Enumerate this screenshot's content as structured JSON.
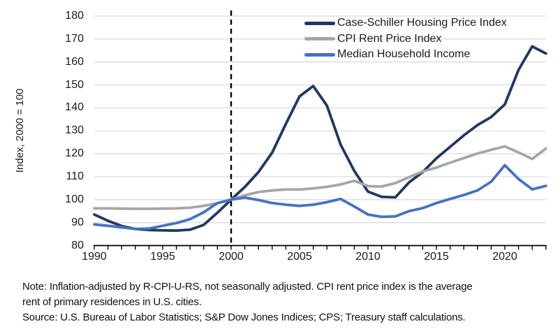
{
  "y_axis": {
    "title": "Index, 2000 = 100",
    "min": 80,
    "max": 180,
    "tick_step": 10
  },
  "x_axis": {
    "min": 1990,
    "max": 2023,
    "labeled_ticks": [
      1990,
      1995,
      2000,
      2005,
      2010,
      2015,
      2020
    ],
    "minor_tick_every": 1
  },
  "reference_line": {
    "x": 2000,
    "style": "dashed",
    "color": "#000000"
  },
  "colors": {
    "gridline": "#d9d9d9",
    "axis": "#000000",
    "text": "#262626"
  },
  "legend": [
    {
      "id": "case_shiller",
      "label": "Case-Schiller Housing Price Index",
      "color": "#1f3864"
    },
    {
      "id": "cpi_rent",
      "label": "CPI Rent Price Index",
      "color": "#a6a6a6"
    },
    {
      "id": "median_income",
      "label": "Median Household Income",
      "color": "#4472c4"
    }
  ],
  "notes": {
    "line1": "Note: Inflation-adjusted by R-CPI-U-RS, not seasonally adjusted. CPI rent price index is the average",
    "line2": "rent of primary residences in U.S. cities.",
    "line3": "Source: U.S. Bureau of Labor Statistics; S&P Dow Jones Indices; CPS; Treasury staff calculations."
  },
  "chart_data": {
    "type": "line",
    "title": "",
    "xlabel": "",
    "ylabel": "Index, 2000 = 100",
    "ylim": [
      80,
      180
    ],
    "xlim": [
      1990,
      2023
    ],
    "grid": true,
    "legend_position": "top-right",
    "reference_line_x": 2000,
    "x": [
      1990,
      1991,
      1992,
      1993,
      1994,
      1995,
      1996,
      1997,
      1998,
      1999,
      2000,
      2001,
      2002,
      2003,
      2004,
      2005,
      2006,
      2007,
      2008,
      2009,
      2010,
      2011,
      2012,
      2013,
      2014,
      2015,
      2016,
      2017,
      2018,
      2019,
      2020,
      2021,
      2022,
      2023
    ],
    "series": [
      {
        "name": "Case-Schiller Housing Price Index",
        "color": "#1f3864",
        "values": [
          93.5,
          90.8,
          88.5,
          87.2,
          86.8,
          86.6,
          86.5,
          86.9,
          89.0,
          94.3,
          100.0,
          105.5,
          112.0,
          120.5,
          133.0,
          145.0,
          149.5,
          141.0,
          124.0,
          112.5,
          103.5,
          101.2,
          101.0,
          107.5,
          112.0,
          118.0,
          123.0,
          128.0,
          132.5,
          136.0,
          141.5,
          156.5,
          166.8,
          163.7
        ]
      },
      {
        "name": "CPI Rent Price Index",
        "color": "#a6a6a6",
        "values": [
          96.2,
          96.2,
          96.1,
          96.0,
          96.0,
          96.1,
          96.2,
          96.5,
          97.3,
          98.4,
          100.0,
          101.9,
          103.3,
          104.0,
          104.4,
          104.4,
          104.9,
          105.6,
          106.6,
          108.2,
          105.9,
          105.7,
          107.2,
          109.8,
          112.3,
          114.0,
          116.1,
          118.1,
          120.1,
          121.7,
          123.2,
          120.6,
          117.7,
          122.3
        ]
      },
      {
        "name": "Median Household Income",
        "color": "#4472c4",
        "values": [
          89.2,
          88.6,
          87.9,
          87.2,
          87.4,
          88.6,
          89.8,
          91.5,
          94.5,
          98.5,
          100.0,
          100.9,
          99.8,
          98.5,
          97.8,
          97.3,
          97.8,
          98.9,
          100.3,
          97.0,
          93.5,
          92.5,
          92.7,
          95.0,
          96.3,
          98.5,
          100.3,
          102.0,
          104.0,
          107.8,
          115.0,
          109.0,
          104.5,
          106.0
        ]
      }
    ]
  }
}
